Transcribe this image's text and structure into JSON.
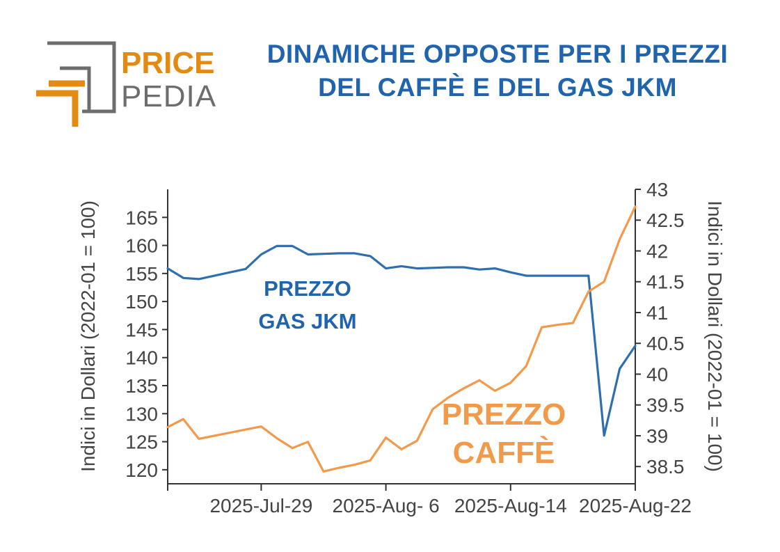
{
  "header": {
    "logo_text_top": "PRICE",
    "logo_text_bottom": "PEDIA",
    "title_line1": "DINAMICHE OPPOSTE PER I PREZZI",
    "title_line2": "DEL CAFFÈ E DEL GAS JKM"
  },
  "colors": {
    "title": "#1f64ad",
    "gas": "#2f6fb0",
    "coffee": "#f2994a",
    "logo_orange": "#e38a12",
    "logo_gray": "#6d6d6d"
  },
  "chart_data": {
    "type": "line",
    "x_tick_labels": [
      "2025-Jul-29",
      "2025-Aug- 6",
      "2025-Aug-14",
      "2025-Aug-22"
    ],
    "x_tick_index": [
      6,
      14,
      22,
      30
    ],
    "left_axis": {
      "label": "Indici in Dollari (2022-01 = 100)",
      "range": [
        117.5,
        170
      ],
      "ticks": [
        120,
        125,
        130,
        135,
        140,
        145,
        150,
        155,
        160,
        165
      ]
    },
    "right_axis": {
      "label": "Indici in Dollari (2022-01 = 100)",
      "range": [
        38.22,
        43
      ],
      "ticks": [
        "38.5",
        "39",
        "39.5",
        "40",
        "40.5",
        "41",
        "41.5",
        "42",
        "42.5",
        "43"
      ]
    },
    "annotations": {
      "gas_line1": "PREZZO",
      "gas_line2": "GAS JKM",
      "coffee_line1": "PREZZO",
      "coffee_line2": "CAFFÈ"
    },
    "series": [
      {
        "key": "gas",
        "axis": "left",
        "points": [
          [
            0,
            155.9
          ],
          [
            1,
            154.2
          ],
          [
            2,
            154.0
          ],
          [
            3,
            154.6
          ],
          [
            4,
            155.2
          ],
          [
            5,
            155.8
          ],
          [
            6,
            158.4
          ],
          [
            7,
            159.9
          ],
          [
            8,
            159.9
          ],
          [
            9,
            158.4
          ],
          [
            10,
            158.5
          ],
          [
            11,
            158.6
          ],
          [
            12,
            158.6
          ],
          [
            13,
            158.1
          ],
          [
            14,
            155.9
          ],
          [
            15,
            156.3
          ],
          [
            16,
            155.9
          ],
          [
            17,
            156.0
          ],
          [
            18,
            156.1
          ],
          [
            19,
            156.1
          ],
          [
            20,
            155.7
          ],
          [
            21,
            155.9
          ],
          [
            22,
            155.2
          ],
          [
            23,
            154.6
          ],
          [
            24,
            154.6
          ],
          [
            25,
            154.6
          ],
          [
            26,
            154.6
          ],
          [
            27,
            154.6
          ],
          [
            28,
            126.1
          ],
          [
            29,
            138.0
          ],
          [
            30,
            142.1
          ]
        ]
      },
      {
        "key": "coffee",
        "axis": "right",
        "points": [
          [
            0,
            39.14
          ],
          [
            1,
            39.27
          ],
          [
            2,
            38.95
          ],
          [
            3,
            39.0
          ],
          [
            4,
            39.05
          ],
          [
            5,
            39.1
          ],
          [
            6,
            39.15
          ],
          [
            7,
            38.96
          ],
          [
            8,
            38.8
          ],
          [
            9,
            38.9
          ],
          [
            10,
            38.42
          ],
          [
            11,
            38.48
          ],
          [
            12,
            38.53
          ],
          [
            13,
            38.6
          ],
          [
            14,
            38.97
          ],
          [
            15,
            38.78
          ],
          [
            16,
            38.92
          ],
          [
            17,
            39.43
          ],
          [
            18,
            39.62
          ],
          [
            19,
            39.77
          ],
          [
            20,
            39.9
          ],
          [
            21,
            39.73
          ],
          [
            22,
            39.86
          ],
          [
            23,
            40.13
          ],
          [
            24,
            40.76
          ],
          [
            25,
            40.8
          ],
          [
            26,
            40.83
          ],
          [
            27,
            41.34
          ],
          [
            28,
            41.5
          ],
          [
            29,
            42.19
          ],
          [
            30,
            42.72
          ]
        ]
      }
    ]
  }
}
